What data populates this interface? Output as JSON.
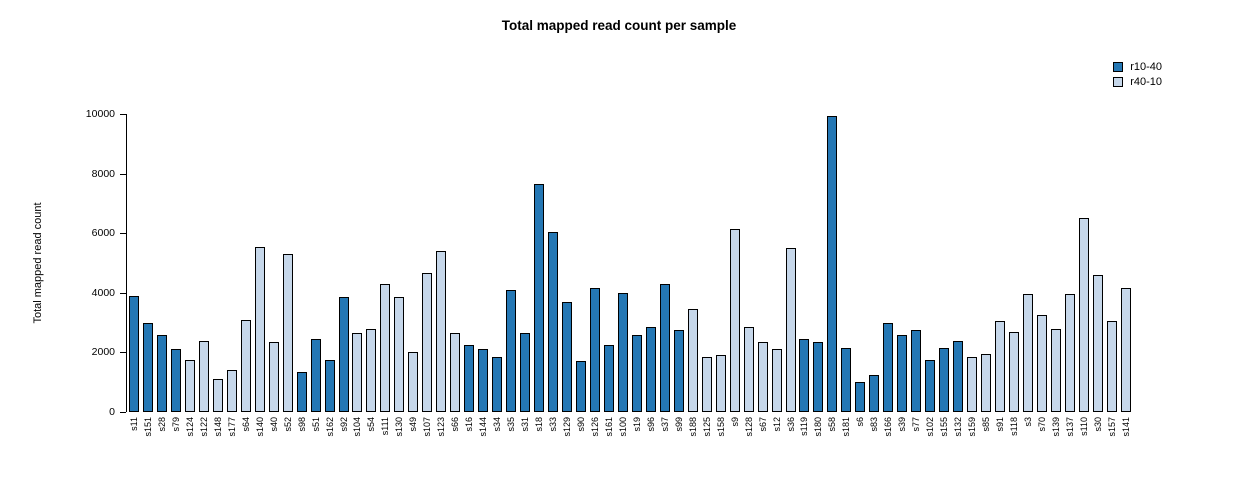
{
  "title": "Total mapped read count per sample",
  "ylabel": "Total mapped read count",
  "legend": {
    "position": "top-right",
    "items": [
      {
        "label": "r10-40",
        "color": "#2477b4"
      },
      {
        "label": "r40-10",
        "color": "#c6d7ea"
      }
    ]
  },
  "chart_data": {
    "type": "bar",
    "title": "Total mapped read count per sample",
    "xlabel": "",
    "ylabel": "Total mapped read count",
    "ylim": [
      0,
      10000
    ],
    "yticks": [
      0,
      2000,
      4000,
      6000,
      8000,
      10000
    ],
    "grid": false,
    "legend_position": "top-right",
    "colors": {
      "r10-40": "#2477b4",
      "r40-10": "#c6d7ea"
    },
    "bars": [
      {
        "label": "s11",
        "value": 3900,
        "group": "r10-40"
      },
      {
        "label": "s151",
        "value": 3000,
        "group": "r10-40"
      },
      {
        "label": "s28",
        "value": 2600,
        "group": "r10-40"
      },
      {
        "label": "s79",
        "value": 2100,
        "group": "r10-40"
      },
      {
        "label": "s124",
        "value": 1750,
        "group": "r40-10"
      },
      {
        "label": "s122",
        "value": 2400,
        "group": "r40-10"
      },
      {
        "label": "s148",
        "value": 1100,
        "group": "r40-10"
      },
      {
        "label": "s177",
        "value": 1400,
        "group": "r40-10"
      },
      {
        "label": "s64",
        "value": 3100,
        "group": "r40-10"
      },
      {
        "label": "s140",
        "value": 5550,
        "group": "r40-10"
      },
      {
        "label": "s40",
        "value": 2350,
        "group": "r40-10"
      },
      {
        "label": "s52",
        "value": 5300,
        "group": "r40-10"
      },
      {
        "label": "s98",
        "value": 1350,
        "group": "r10-40"
      },
      {
        "label": "s51",
        "value": 2450,
        "group": "r10-40"
      },
      {
        "label": "s162",
        "value": 1750,
        "group": "r10-40"
      },
      {
        "label": "s92",
        "value": 3850,
        "group": "r10-40"
      },
      {
        "label": "s104",
        "value": 2650,
        "group": "r40-10"
      },
      {
        "label": "s54",
        "value": 2800,
        "group": "r40-10"
      },
      {
        "label": "s111",
        "value": 4300,
        "group": "r40-10"
      },
      {
        "label": "s130",
        "value": 3850,
        "group": "r40-10"
      },
      {
        "label": "s49",
        "value": 2000,
        "group": "r40-10"
      },
      {
        "label": "s107",
        "value": 4650,
        "group": "r40-10"
      },
      {
        "label": "s123",
        "value": 5400,
        "group": "r40-10"
      },
      {
        "label": "s66",
        "value": 2650,
        "group": "r40-10"
      },
      {
        "label": "s16",
        "value": 2250,
        "group": "r10-40"
      },
      {
        "label": "s144",
        "value": 2100,
        "group": "r10-40"
      },
      {
        "label": "s34",
        "value": 1850,
        "group": "r10-40"
      },
      {
        "label": "s35",
        "value": 4100,
        "group": "r10-40"
      },
      {
        "label": "s31",
        "value": 2650,
        "group": "r10-40"
      },
      {
        "label": "s18",
        "value": 7650,
        "group": "r10-40"
      },
      {
        "label": "s33",
        "value": 6050,
        "group": "r10-40"
      },
      {
        "label": "s129",
        "value": 3700,
        "group": "r10-40"
      },
      {
        "label": "s90",
        "value": 1700,
        "group": "r10-40"
      },
      {
        "label": "s126",
        "value": 4150,
        "group": "r10-40"
      },
      {
        "label": "s161",
        "value": 2250,
        "group": "r10-40"
      },
      {
        "label": "s100",
        "value": 4000,
        "group": "r10-40"
      },
      {
        "label": "s19",
        "value": 2600,
        "group": "r10-40"
      },
      {
        "label": "s96",
        "value": 2850,
        "group": "r10-40"
      },
      {
        "label": "s37",
        "value": 4300,
        "group": "r10-40"
      },
      {
        "label": "s99",
        "value": 2750,
        "group": "r10-40"
      },
      {
        "label": "s188",
        "value": 3450,
        "group": "r40-10"
      },
      {
        "label": "s125",
        "value": 1850,
        "group": "r40-10"
      },
      {
        "label": "s158",
        "value": 1900,
        "group": "r40-10"
      },
      {
        "label": "s9",
        "value": 6150,
        "group": "r40-10"
      },
      {
        "label": "s128",
        "value": 2850,
        "group": "r40-10"
      },
      {
        "label": "s67",
        "value": 2350,
        "group": "r40-10"
      },
      {
        "label": "s12",
        "value": 2100,
        "group": "r40-10"
      },
      {
        "label": "s36",
        "value": 5500,
        "group": "r40-10"
      },
      {
        "label": "s119",
        "value": 2450,
        "group": "r10-40"
      },
      {
        "label": "s180",
        "value": 2350,
        "group": "r10-40"
      },
      {
        "label": "s58",
        "value": 9950,
        "group": "r10-40"
      },
      {
        "label": "s181",
        "value": 2150,
        "group": "r10-40"
      },
      {
        "label": "s6",
        "value": 1000,
        "group": "r10-40"
      },
      {
        "label": "s83",
        "value": 1250,
        "group": "r10-40"
      },
      {
        "label": "s166",
        "value": 3000,
        "group": "r10-40"
      },
      {
        "label": "s39",
        "value": 2600,
        "group": "r10-40"
      },
      {
        "label": "s77",
        "value": 2750,
        "group": "r10-40"
      },
      {
        "label": "s102",
        "value": 1750,
        "group": "r10-40"
      },
      {
        "label": "s155",
        "value": 2150,
        "group": "r10-40"
      },
      {
        "label": "s132",
        "value": 2400,
        "group": "r10-40"
      },
      {
        "label": "s159",
        "value": 1850,
        "group": "r40-10"
      },
      {
        "label": "s85",
        "value": 1950,
        "group": "r40-10"
      },
      {
        "label": "s91",
        "value": 3050,
        "group": "r40-10"
      },
      {
        "label": "s118",
        "value": 2700,
        "group": "r40-10"
      },
      {
        "label": "s3",
        "value": 3950,
        "group": "r40-10"
      },
      {
        "label": "s70",
        "value": 3250,
        "group": "r40-10"
      },
      {
        "label": "s139",
        "value": 2800,
        "group": "r40-10"
      },
      {
        "label": "s137",
        "value": 3950,
        "group": "r40-10"
      },
      {
        "label": "s110",
        "value": 6500,
        "group": "r40-10"
      },
      {
        "label": "s30",
        "value": 4600,
        "group": "r40-10"
      },
      {
        "label": "s157",
        "value": 3050,
        "group": "r40-10"
      },
      {
        "label": "s141",
        "value": 4150,
        "group": "r40-10"
      }
    ]
  }
}
